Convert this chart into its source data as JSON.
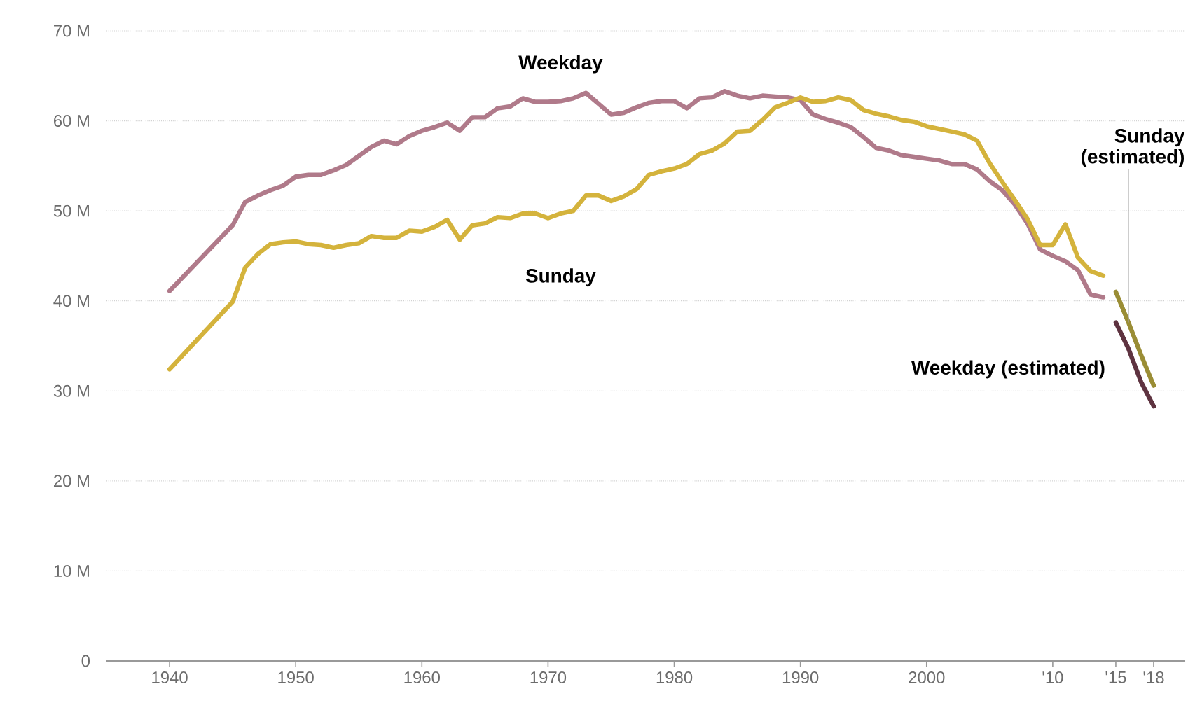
{
  "chart_data": {
    "type": "line",
    "xlim": [
      1935,
      2020.5
    ],
    "ylim": [
      0,
      70
    ],
    "xticks": [
      1940,
      1950,
      1960,
      1970,
      1980,
      1990,
      2000,
      {
        "value": 2010,
        "label": "'10"
      },
      {
        "value": 2015,
        "label": "'15"
      },
      {
        "value": 2018,
        "label": "'18"
      }
    ],
    "yticks": [
      {
        "value": 0,
        "label": "0"
      },
      {
        "value": 10,
        "label": "10 M"
      },
      {
        "value": 20,
        "label": "20 M"
      },
      {
        "value": 30,
        "label": "30 M"
      },
      {
        "value": 40,
        "label": "40 M"
      },
      {
        "value": 50,
        "label": "50 M"
      },
      {
        "value": 60,
        "label": "60 M"
      },
      {
        "value": 70,
        "label": "70 M"
      }
    ],
    "grid": "y",
    "legend": false,
    "marker": "none",
    "line_style": "solid",
    "series": [
      {
        "name": "Weekday",
        "color": "#b07a8a",
        "x": [
          1940,
          1945,
          1946,
          1947,
          1948,
          1949,
          1950,
          1951,
          1952,
          1953,
          1954,
          1955,
          1956,
          1957,
          1958,
          1959,
          1960,
          1961,
          1962,
          1963,
          1964,
          1965,
          1966,
          1967,
          1968,
          1969,
          1970,
          1971,
          1972,
          1973,
          1974,
          1975,
          1976,
          1977,
          1978,
          1979,
          1980,
          1981,
          1982,
          1983,
          1984,
          1985,
          1986,
          1987,
          1988,
          1989,
          1990,
          1991,
          1992,
          1993,
          1994,
          1995,
          1996,
          1997,
          1998,
          1999,
          2000,
          2001,
          2002,
          2003,
          2004,
          2005,
          2006,
          2007,
          2008,
          2009,
          2010,
          2011,
          2012,
          2013,
          2014
        ],
        "values": [
          41.1,
          48.4,
          51.0,
          51.7,
          52.3,
          52.8,
          53.8,
          54.0,
          54.0,
          54.5,
          55.1,
          56.1,
          57.1,
          57.8,
          57.4,
          58.3,
          58.9,
          59.3,
          59.8,
          58.9,
          60.4,
          60.4,
          61.4,
          61.6,
          62.5,
          62.1,
          62.1,
          62.2,
          62.5,
          63.1,
          61.9,
          60.7,
          60.9,
          61.5,
          62.0,
          62.2,
          62.2,
          61.4,
          62.5,
          62.6,
          63.3,
          62.8,
          62.5,
          62.8,
          62.7,
          62.6,
          62.3,
          60.7,
          60.2,
          59.8,
          59.3,
          58.2,
          57.0,
          56.7,
          56.2,
          56.0,
          55.8,
          55.6,
          55.2,
          55.2,
          54.6,
          53.3,
          52.3,
          50.7,
          48.6,
          45.7,
          45.0,
          44.4,
          43.4,
          40.7,
          40.4
        ]
      },
      {
        "name": "Sunday",
        "color": "#d4b33c",
        "x": [
          1940,
          1945,
          1946,
          1947,
          1948,
          1949,
          1950,
          1951,
          1952,
          1953,
          1954,
          1955,
          1956,
          1957,
          1958,
          1959,
          1960,
          1961,
          1962,
          1963,
          1964,
          1965,
          1966,
          1967,
          1968,
          1969,
          1970,
          1971,
          1972,
          1973,
          1974,
          1975,
          1976,
          1977,
          1978,
          1979,
          1980,
          1981,
          1982,
          1983,
          1984,
          1985,
          1986,
          1987,
          1988,
          1989,
          1990,
          1991,
          1992,
          1993,
          1994,
          1995,
          1996,
          1997,
          1998,
          1999,
          2000,
          2001,
          2002,
          2003,
          2004,
          2005,
          2006,
          2007,
          2008,
          2009,
          2010,
          2011,
          2012,
          2013,
          2014
        ],
        "values": [
          32.4,
          39.9,
          43.7,
          45.2,
          46.3,
          46.5,
          46.6,
          46.3,
          46.2,
          45.9,
          46.2,
          46.4,
          47.2,
          47.0,
          47.0,
          47.8,
          47.7,
          48.2,
          49.0,
          46.8,
          48.4,
          48.6,
          49.3,
          49.2,
          49.7,
          49.7,
          49.2,
          49.7,
          50.0,
          51.7,
          51.7,
          51.1,
          51.6,
          52.4,
          54.0,
          54.4,
          54.7,
          55.2,
          56.3,
          56.7,
          57.5,
          58.8,
          58.9,
          60.1,
          61.5,
          62.0,
          62.6,
          62.1,
          62.2,
          62.6,
          62.3,
          61.2,
          60.8,
          60.5,
          60.1,
          59.9,
          59.4,
          59.1,
          58.8,
          58.5,
          57.8,
          55.3,
          53.2,
          51.2,
          49.1,
          46.2,
          46.2,
          48.5,
          44.8,
          43.3,
          42.8
        ]
      },
      {
        "name": "Weekday (estimated)",
        "color": "#5e3340",
        "x": [
          2015,
          2016,
          2017,
          2018
        ],
        "values": [
          37.6,
          34.7,
          31.0,
          28.3
        ]
      },
      {
        "name": "Sunday (estimated)",
        "color": "#9a8d35",
        "x": [
          2015,
          2016,
          2017,
          2018
        ],
        "values": [
          41.0,
          37.6,
          34.0,
          30.6
        ]
      }
    ]
  }
}
